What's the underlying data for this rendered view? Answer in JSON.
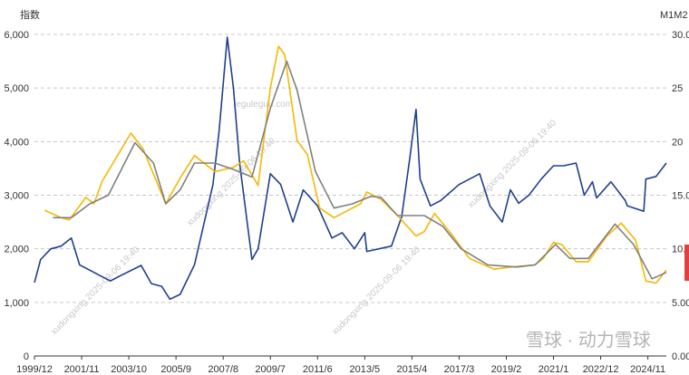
{
  "chart_data": {
    "type": "line",
    "title": "",
    "y_left_label": "指数",
    "y_right_label": "M1M2",
    "y_left_ticks": [
      "0",
      "1,000",
      "2,000",
      "3,000",
      "4,000",
      "5,000",
      "6,000"
    ],
    "y_right_ticks": [
      "0.00",
      "5.00",
      "10.00",
      "15.00",
      "20",
      "25",
      "30.00"
    ],
    "x_ticks": [
      "1999/12",
      "2001/11",
      "2003/10",
      "2005/9",
      "2007/8",
      "2009/7",
      "2011/6",
      "2013/5",
      "2015/4",
      "2017/3",
      "2019/2",
      "2021/1",
      "2022/12",
      "2024/11"
    ],
    "ylim_left": [
      0,
      6000
    ],
    "ylim_right": [
      0,
      30
    ],
    "xlim": [
      "1999-12",
      "2025-08"
    ],
    "grid": "horizontal dashed",
    "series": [
      {
        "axis": "left",
        "color": "#1f3f8f",
        "points": [
          [
            "1999-12",
            1370
          ],
          [
            "2000-03",
            1800
          ],
          [
            "2000-08",
            2000
          ],
          [
            "2001-01",
            2050
          ],
          [
            "2001-06",
            2200
          ],
          [
            "2001-10",
            1700
          ],
          [
            "2002-03",
            1600
          ],
          [
            "2002-08",
            1500
          ],
          [
            "2003-01",
            1400
          ],
          [
            "2003-06",
            1500
          ],
          [
            "2004-04",
            1690
          ],
          [
            "2004-09",
            1350
          ],
          [
            "2005-02",
            1300
          ],
          [
            "2005-06",
            1060
          ],
          [
            "2005-11",
            1150
          ],
          [
            "2006-06",
            1700
          ],
          [
            "2006-12",
            2700
          ],
          [
            "2007-03",
            3200
          ],
          [
            "2007-06",
            4200
          ],
          [
            "2007-10",
            5950
          ],
          [
            "2008-01",
            5000
          ],
          [
            "2008-04",
            3600
          ],
          [
            "2008-10",
            1800
          ],
          [
            "2009-01",
            2000
          ],
          [
            "2009-07",
            3400
          ],
          [
            "2009-12",
            3200
          ],
          [
            "2010-06",
            2500
          ],
          [
            "2010-11",
            3100
          ],
          [
            "2011-06",
            2800
          ],
          [
            "2012-01",
            2200
          ],
          [
            "2012-06",
            2300
          ],
          [
            "2012-12",
            2000
          ],
          [
            "2013-05",
            2300
          ],
          [
            "2013-06",
            1950
          ],
          [
            "2014-06",
            2050
          ],
          [
            "2014-11",
            2600
          ],
          [
            "2015-03",
            3700
          ],
          [
            "2015-06",
            4600
          ],
          [
            "2015-08",
            3300
          ],
          [
            "2016-01",
            2800
          ],
          [
            "2016-06",
            2900
          ],
          [
            "2017-03",
            3200
          ],
          [
            "2018-01",
            3400
          ],
          [
            "2018-06",
            2800
          ],
          [
            "2018-12",
            2500
          ],
          [
            "2019-04",
            3100
          ],
          [
            "2019-08",
            2850
          ],
          [
            "2020-01",
            3000
          ],
          [
            "2020-07",
            3300
          ],
          [
            "2021-01",
            3550
          ],
          [
            "2021-06",
            3550
          ],
          [
            "2021-12",
            3600
          ],
          [
            "2022-04",
            3000
          ],
          [
            "2022-08",
            3250
          ],
          [
            "2022-10",
            2950
          ],
          [
            "2023-05",
            3250
          ],
          [
            "2023-12",
            2900
          ],
          [
            "2024-01",
            2800
          ],
          [
            "2024-09",
            2700
          ],
          [
            "2024-10",
            3300
          ],
          [
            "2025-03",
            3350
          ],
          [
            "2025-08",
            3600
          ]
        ]
      },
      {
        "axis": "right",
        "color": "#f5b800",
        "points": [
          [
            "2000-05",
            13.6
          ],
          [
            "2001-01",
            12.9
          ],
          [
            "2001-05",
            12.7
          ],
          [
            "2002-01",
            14.8
          ],
          [
            "2002-05",
            14.2
          ],
          [
            "2002-09",
            16.3
          ],
          [
            "2003-11",
            20.8
          ],
          [
            "2004-05",
            19.3
          ],
          [
            "2005-04",
            14.2
          ],
          [
            "2005-11",
            16.6
          ],
          [
            "2006-06",
            18.7
          ],
          [
            "2007-04",
            17.2
          ],
          [
            "2008-01",
            17.6
          ],
          [
            "2008-06",
            18.2
          ],
          [
            "2009-01",
            15.9
          ],
          [
            "2009-07",
            25.0
          ],
          [
            "2009-11",
            28.9
          ],
          [
            "2010-02",
            28.1
          ],
          [
            "2010-08",
            20.1
          ],
          [
            "2011-01",
            18.8
          ],
          [
            "2011-07",
            13.8
          ],
          [
            "2012-02",
            12.9
          ],
          [
            "2013-03",
            14.2
          ],
          [
            "2013-06",
            15.3
          ],
          [
            "2014-01",
            14.6
          ],
          [
            "2014-09",
            13.1
          ],
          [
            "2015-06",
            11.2
          ],
          [
            "2015-10",
            11.6
          ],
          [
            "2016-03",
            13.3
          ],
          [
            "2016-12",
            11.2
          ],
          [
            "2017-08",
            9.1
          ],
          [
            "2018-08",
            8.1
          ],
          [
            "2019-04",
            8.3
          ],
          [
            "2020-04",
            8.5
          ],
          [
            "2020-08",
            9.1
          ],
          [
            "2021-01",
            10.6
          ],
          [
            "2021-05",
            10.4
          ],
          [
            "2021-12",
            8.8
          ],
          [
            "2022-06",
            8.8
          ],
          [
            "2023-03",
            11.2
          ],
          [
            "2023-10",
            12.4
          ],
          [
            "2024-05",
            10.8
          ],
          [
            "2024-10",
            7.0
          ],
          [
            "2025-03",
            6.8
          ],
          [
            "2025-08",
            8.0
          ]
        ]
      },
      {
        "axis": "right",
        "color": "#808080",
        "points": [
          [
            "2000-09",
            12.9
          ],
          [
            "2001-06",
            12.9
          ],
          [
            "2002-03",
            14.2
          ],
          [
            "2002-12",
            15.0
          ],
          [
            "2004-01",
            19.9
          ],
          [
            "2004-10",
            18.0
          ],
          [
            "2005-04",
            14.2
          ],
          [
            "2005-11",
            15.5
          ],
          [
            "2006-06",
            18.0
          ],
          [
            "2007-04",
            18.0
          ],
          [
            "2008-01",
            17.4
          ],
          [
            "2008-10",
            16.7
          ],
          [
            "2009-07",
            23.1
          ],
          [
            "2010-03",
            27.5
          ],
          [
            "2010-08",
            24.8
          ],
          [
            "2011-05",
            17.2
          ],
          [
            "2012-02",
            13.8
          ],
          [
            "2012-11",
            14.2
          ],
          [
            "2013-08",
            14.9
          ],
          [
            "2014-01",
            14.8
          ],
          [
            "2014-09",
            13.1
          ],
          [
            "2015-10",
            13.1
          ],
          [
            "2016-07",
            12.1
          ],
          [
            "2017-04",
            10.0
          ],
          [
            "2018-05",
            8.5
          ],
          [
            "2019-07",
            8.3
          ],
          [
            "2020-04",
            8.5
          ],
          [
            "2021-02",
            10.4
          ],
          [
            "2021-09",
            9.1
          ],
          [
            "2022-06",
            9.1
          ],
          [
            "2023-07",
            12.3
          ],
          [
            "2024-04",
            10.4
          ],
          [
            "2025-01",
            7.2
          ],
          [
            "2025-08",
            7.8
          ]
        ]
      }
    ]
  },
  "watermarks": {
    "site": "leguleguu.com",
    "stamp": "xudongxing 2025-09-06 19:40",
    "logo": "雪球 · 动力雪球"
  },
  "colors": {
    "index": "#1f3f8f",
    "m1": "#f5b800",
    "m2": "#808080",
    "grid": "#c8c8c8",
    "marker": "#e04040"
  }
}
